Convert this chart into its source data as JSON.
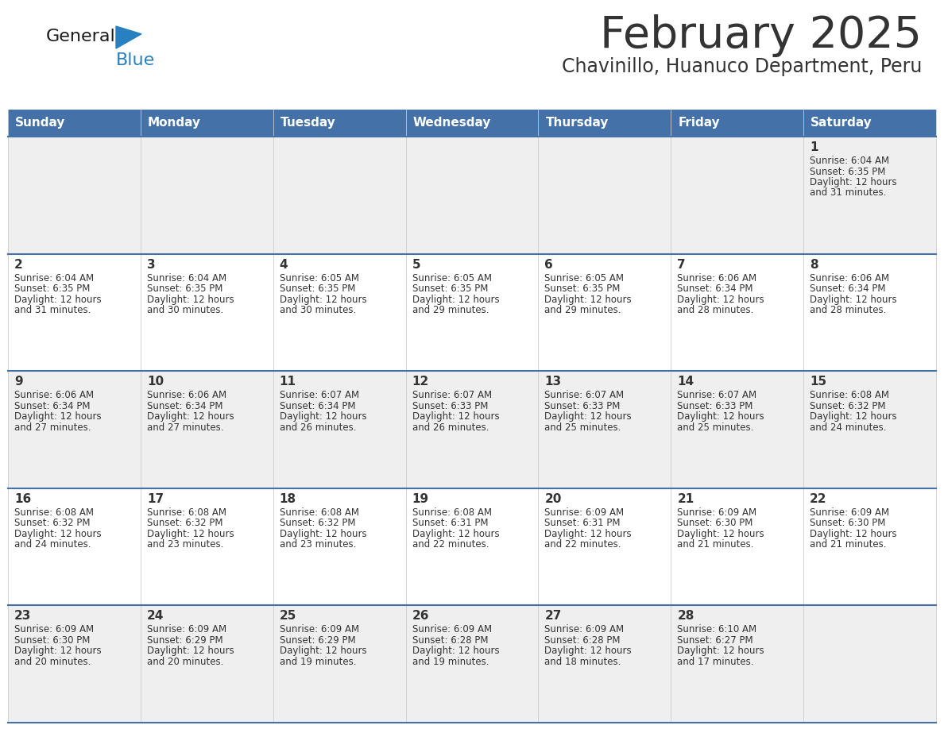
{
  "title": "February 2025",
  "subtitle": "Chavinillo, Huanuco Department, Peru",
  "header_color": "#4472a8",
  "header_text_color": "#ffffff",
  "days_of_week": [
    "Sunday",
    "Monday",
    "Tuesday",
    "Wednesday",
    "Thursday",
    "Friday",
    "Saturday"
  ],
  "bg_color_light": "#efefef",
  "bg_color_white": "#ffffff",
  "border_color": "#4472a8",
  "text_color": "#333333",
  "logo_general_color": "#1a1a1a",
  "logo_blue_color": "#2980c0",
  "calendar": [
    [
      null,
      null,
      null,
      null,
      null,
      null,
      {
        "day": "1",
        "sunrise": "6:04 AM",
        "sunset": "6:35 PM",
        "daylight_h": "12 hours",
        "daylight_m": "and 31 minutes."
      }
    ],
    [
      {
        "day": "2",
        "sunrise": "6:04 AM",
        "sunset": "6:35 PM",
        "daylight_h": "12 hours",
        "daylight_m": "and 31 minutes."
      },
      {
        "day": "3",
        "sunrise": "6:04 AM",
        "sunset": "6:35 PM",
        "daylight_h": "12 hours",
        "daylight_m": "and 30 minutes."
      },
      {
        "day": "4",
        "sunrise": "6:05 AM",
        "sunset": "6:35 PM",
        "daylight_h": "12 hours",
        "daylight_m": "and 30 minutes."
      },
      {
        "day": "5",
        "sunrise": "6:05 AM",
        "sunset": "6:35 PM",
        "daylight_h": "12 hours",
        "daylight_m": "and 29 minutes."
      },
      {
        "day": "6",
        "sunrise": "6:05 AM",
        "sunset": "6:35 PM",
        "daylight_h": "12 hours",
        "daylight_m": "and 29 minutes."
      },
      {
        "day": "7",
        "sunrise": "6:06 AM",
        "sunset": "6:34 PM",
        "daylight_h": "12 hours",
        "daylight_m": "and 28 minutes."
      },
      {
        "day": "8",
        "sunrise": "6:06 AM",
        "sunset": "6:34 PM",
        "daylight_h": "12 hours",
        "daylight_m": "and 28 minutes."
      }
    ],
    [
      {
        "day": "9",
        "sunrise": "6:06 AM",
        "sunset": "6:34 PM",
        "daylight_h": "12 hours",
        "daylight_m": "and 27 minutes."
      },
      {
        "day": "10",
        "sunrise": "6:06 AM",
        "sunset": "6:34 PM",
        "daylight_h": "12 hours",
        "daylight_m": "and 27 minutes."
      },
      {
        "day": "11",
        "sunrise": "6:07 AM",
        "sunset": "6:34 PM",
        "daylight_h": "12 hours",
        "daylight_m": "and 26 minutes."
      },
      {
        "day": "12",
        "sunrise": "6:07 AM",
        "sunset": "6:33 PM",
        "daylight_h": "12 hours",
        "daylight_m": "and 26 minutes."
      },
      {
        "day": "13",
        "sunrise": "6:07 AM",
        "sunset": "6:33 PM",
        "daylight_h": "12 hours",
        "daylight_m": "and 25 minutes."
      },
      {
        "day": "14",
        "sunrise": "6:07 AM",
        "sunset": "6:33 PM",
        "daylight_h": "12 hours",
        "daylight_m": "and 25 minutes."
      },
      {
        "day": "15",
        "sunrise": "6:08 AM",
        "sunset": "6:32 PM",
        "daylight_h": "12 hours",
        "daylight_m": "and 24 minutes."
      }
    ],
    [
      {
        "day": "16",
        "sunrise": "6:08 AM",
        "sunset": "6:32 PM",
        "daylight_h": "12 hours",
        "daylight_m": "and 24 minutes."
      },
      {
        "day": "17",
        "sunrise": "6:08 AM",
        "sunset": "6:32 PM",
        "daylight_h": "12 hours",
        "daylight_m": "and 23 minutes."
      },
      {
        "day": "18",
        "sunrise": "6:08 AM",
        "sunset": "6:32 PM",
        "daylight_h": "12 hours",
        "daylight_m": "and 23 minutes."
      },
      {
        "day": "19",
        "sunrise": "6:08 AM",
        "sunset": "6:31 PM",
        "daylight_h": "12 hours",
        "daylight_m": "and 22 minutes."
      },
      {
        "day": "20",
        "sunrise": "6:09 AM",
        "sunset": "6:31 PM",
        "daylight_h": "12 hours",
        "daylight_m": "and 22 minutes."
      },
      {
        "day": "21",
        "sunrise": "6:09 AM",
        "sunset": "6:30 PM",
        "daylight_h": "12 hours",
        "daylight_m": "and 21 minutes."
      },
      {
        "day": "22",
        "sunrise": "6:09 AM",
        "sunset": "6:30 PM",
        "daylight_h": "12 hours",
        "daylight_m": "and 21 minutes."
      }
    ],
    [
      {
        "day": "23",
        "sunrise": "6:09 AM",
        "sunset": "6:30 PM",
        "daylight_h": "12 hours",
        "daylight_m": "and 20 minutes."
      },
      {
        "day": "24",
        "sunrise": "6:09 AM",
        "sunset": "6:29 PM",
        "daylight_h": "12 hours",
        "daylight_m": "and 20 minutes."
      },
      {
        "day": "25",
        "sunrise": "6:09 AM",
        "sunset": "6:29 PM",
        "daylight_h": "12 hours",
        "daylight_m": "and 19 minutes."
      },
      {
        "day": "26",
        "sunrise": "6:09 AM",
        "sunset": "6:28 PM",
        "daylight_h": "12 hours",
        "daylight_m": "and 19 minutes."
      },
      {
        "day": "27",
        "sunrise": "6:09 AM",
        "sunset": "6:28 PM",
        "daylight_h": "12 hours",
        "daylight_m": "and 18 minutes."
      },
      {
        "day": "28",
        "sunrise": "6:10 AM",
        "sunset": "6:27 PM",
        "daylight_h": "12 hours",
        "daylight_m": "and 17 minutes."
      },
      null
    ]
  ],
  "figsize": [
    11.88,
    9.18
  ],
  "dpi": 100
}
